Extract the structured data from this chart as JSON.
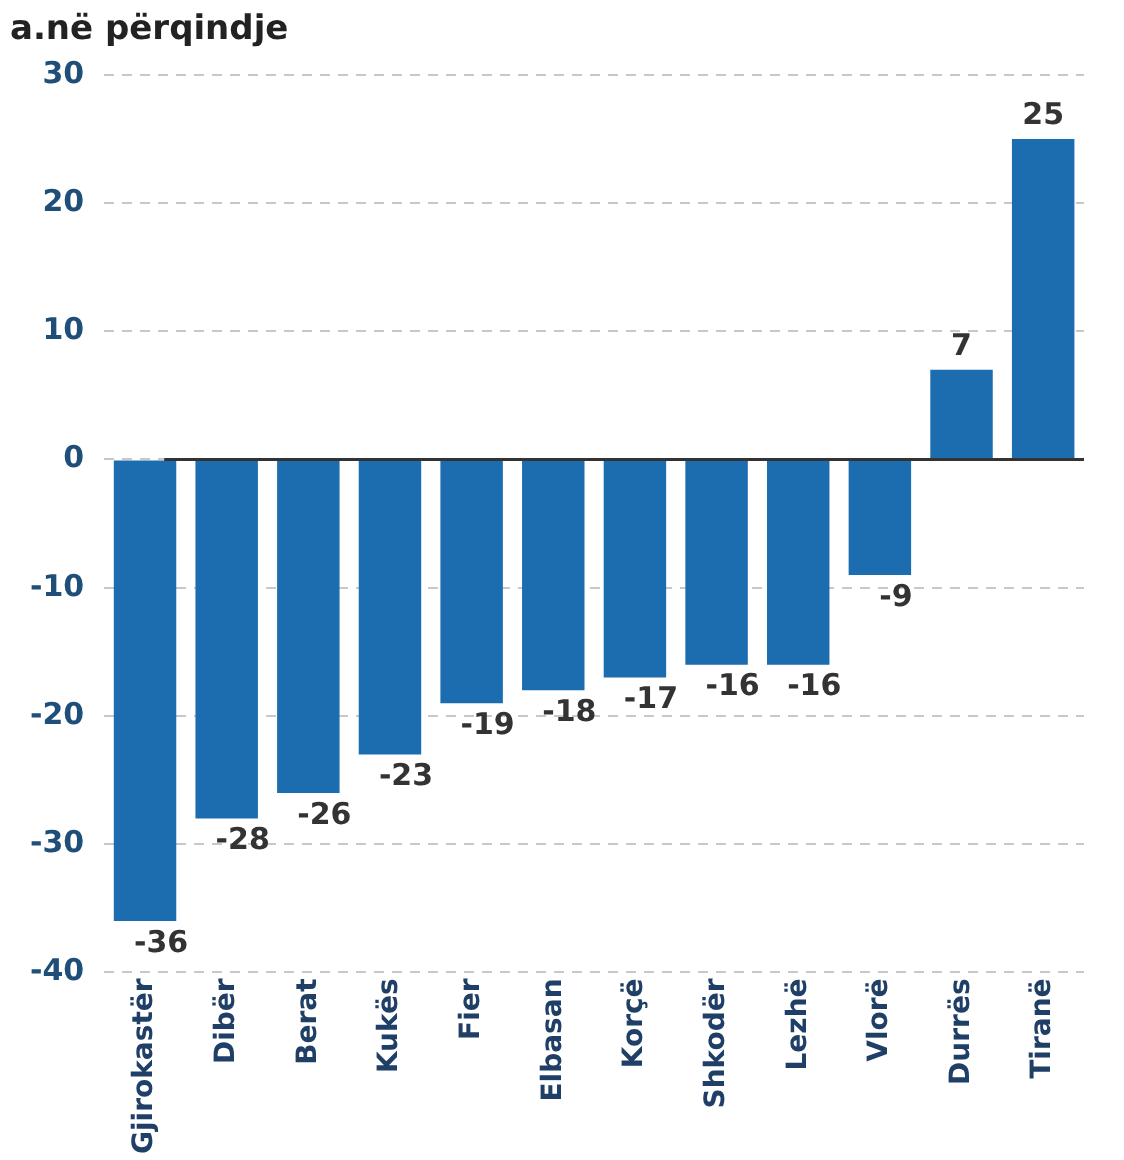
{
  "chart_data": {
    "type": "bar",
    "title": "a.në përqindje",
    "categories": [
      "Gjirokastër",
      "Dibër",
      "Berat",
      "Kukës",
      "Fier",
      "Elbasan",
      "Korçë",
      "Shkodër",
      "Lezhë",
      "Vlorë",
      "Durrës",
      "Tiranë"
    ],
    "values": [
      -36,
      -28,
      -26,
      -23,
      -19,
      -18,
      -17,
      -16,
      -16,
      -9,
      7,
      25
    ],
    "color": "#1b6db0",
    "ylim": [
      -40,
      30
    ],
    "yticks": [
      -40,
      -30,
      -20,
      -10,
      0,
      10,
      20,
      30
    ],
    "grid": "y",
    "data_labels": true,
    "legend": false
  }
}
